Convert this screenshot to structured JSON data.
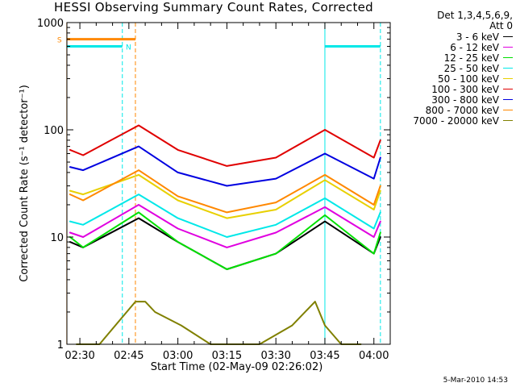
{
  "chart_data": {
    "type": "line",
    "title": "HESSI Observing Summary Count Rates, Corrected",
    "xlabel": "Start Time (02-May-09 02:26:02)",
    "ylabel": "Corrected Count Rate (s⁻¹ detector⁻¹)",
    "yscale": "log",
    "ylim": [
      1,
      1000
    ],
    "xlim": [
      "02:26:02",
      "04:05:00"
    ],
    "x_tick_labels": [
      "02:30",
      "02:45",
      "03:00",
      "03:15",
      "03:30",
      "03:45",
      "04:00"
    ],
    "y_tick_labels": [
      "1",
      "10",
      "100",
      "1000"
    ],
    "grid": false,
    "legend_position": "right",
    "legend_header": [
      "Det 1,3,4,5,6,9,",
      "Att 0"
    ],
    "series": [
      {
        "name": "3 - 6 keV",
        "color": "#000000",
        "x": [
          "02:27",
          "02:31",
          "02:48",
          "03:00",
          "03:15",
          "03:30",
          "03:45",
          "04:00",
          "04:02"
        ],
        "y": [
          9,
          8,
          15,
          9,
          5,
          7,
          14,
          7,
          10
        ]
      },
      {
        "name": "6 - 12 keV",
        "color": "#e000e0",
        "x": [
          "02:27",
          "02:31",
          "02:48",
          "03:00",
          "03:15",
          "03:30",
          "03:45",
          "04:00",
          "04:02"
        ],
        "y": [
          11,
          10,
          20,
          12,
          8,
          11,
          19,
          10,
          14
        ]
      },
      {
        "name": "12 - 25 keV",
        "color": "#00e000",
        "x": [
          "02:27",
          "02:31",
          "02:48",
          "03:00",
          "03:15",
          "03:30",
          "03:45",
          "04:00",
          "04:02"
        ],
        "y": [
          10,
          8,
          17,
          9,
          5,
          7,
          16,
          7,
          11
        ]
      },
      {
        "name": "25 - 50 keV",
        "color": "#00e8e8",
        "x": [
          "02:27",
          "02:31",
          "02:48",
          "03:00",
          "03:15",
          "03:30",
          "03:45",
          "04:00",
          "04:02"
        ],
        "y": [
          14,
          13,
          25,
          15,
          10,
          13,
          23,
          12,
          17
        ]
      },
      {
        "name": "50 - 100 keV",
        "color": "#e8d000",
        "x": [
          "02:27",
          "02:31",
          "02:48",
          "03:00",
          "03:15",
          "03:30",
          "03:45",
          "04:00",
          "04:02"
        ],
        "y": [
          27,
          25,
          38,
          22,
          15,
          18,
          34,
          18,
          27
        ]
      },
      {
        "name": "100 - 300 keV",
        "color": "#e00000",
        "x": [
          "02:27",
          "02:31",
          "02:48",
          "03:00",
          "03:15",
          "03:30",
          "03:45",
          "04:00",
          "04:02"
        ],
        "y": [
          65,
          58,
          110,
          65,
          46,
          55,
          100,
          55,
          80
        ]
      },
      {
        "name": "300 - 800 keV",
        "color": "#0000e0",
        "x": [
          "02:27",
          "02:31",
          "02:48",
          "03:00",
          "03:15",
          "03:30",
          "03:45",
          "04:00",
          "04:02"
        ],
        "y": [
          45,
          42,
          70,
          40,
          30,
          35,
          60,
          35,
          55
        ]
      },
      {
        "name": "800 - 7000 keV",
        "color": "#ff8800",
        "x": [
          "02:27",
          "02:31",
          "02:48",
          "03:00",
          "03:15",
          "03:30",
          "03:45",
          "04:00",
          "04:02"
        ],
        "y": [
          25,
          22,
          42,
          24,
          17,
          21,
          38,
          20,
          30
        ]
      },
      {
        "name": "7000 - 20000 keV",
        "color": "#808000",
        "x": [
          "02:29",
          "02:36",
          "02:47",
          "02:50",
          "02:53",
          "03:01",
          "03:10",
          "03:25",
          "03:35",
          "03:42",
          "03:45",
          "03:50",
          "03:56"
        ],
        "y": [
          1,
          1,
          2.5,
          2.5,
          2,
          1.5,
          1,
          1,
          1.5,
          2.5,
          1.5,
          1,
          1
        ]
      }
    ],
    "annotations": [
      {
        "text": "S",
        "x": "02:26",
        "y": 700,
        "color": "#ff8800"
      },
      {
        "text": "N",
        "x": "02:47",
        "y": 600,
        "color": "#00e8e8"
      }
    ],
    "flag_bars": [
      {
        "color": "#ff8800",
        "y": 700,
        "x_start": "02:26",
        "x_end": "02:47"
      },
      {
        "color": "#00e8e8",
        "y": 600,
        "x_start": "02:26",
        "x_end": "02:43"
      },
      {
        "color": "#00e8e8",
        "y": 600,
        "x_start": "03:45",
        "x_end": "04:02"
      }
    ],
    "vertical_markers": [
      {
        "x": "02:26",
        "color": "#ff8800",
        "style": "solid"
      },
      {
        "x": "02:43",
        "color": "#00e8e8",
        "style": "dashed"
      },
      {
        "x": "02:47",
        "color": "#ff8800",
        "style": "dashed"
      },
      {
        "x": "03:45",
        "color": "#00e8e8",
        "style": "solid"
      },
      {
        "x": "04:02",
        "color": "#00e8e8",
        "style": "dashed"
      }
    ]
  },
  "footer_stamp": "5-Mar-2010 14:53"
}
